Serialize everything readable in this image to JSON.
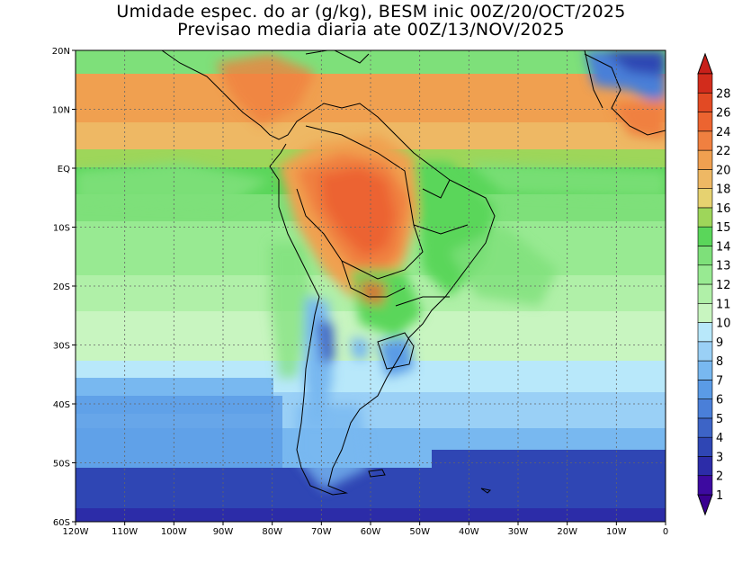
{
  "title": {
    "line1": "Umidade espec. do ar (g/kg), BESM inic 00Z/20/OCT/2025",
    "line2": "Previsao media diaria ate 00Z/13/NOV/2025"
  },
  "map": {
    "lon_range": [
      -120,
      0
    ],
    "lat_range": [
      -60,
      20
    ],
    "grid": true,
    "lon_labels": [
      "120W",
      "110W",
      "100W",
      "90W",
      "80W",
      "70W",
      "60W",
      "50W",
      "40W",
      "30W",
      "20W",
      "10W",
      "0"
    ],
    "lat_labels": [
      "20N",
      "10N",
      "EQ",
      "10S",
      "20S",
      "30S",
      "40S",
      "50S",
      "60S"
    ]
  },
  "colorbar": {
    "levels": [
      "1",
      "2",
      "3",
      "4",
      "5",
      "6",
      "7",
      "8",
      "9",
      "10",
      "11",
      "12",
      "13",
      "14",
      "15",
      "16",
      "18",
      "20",
      "22",
      "24",
      "26",
      "28"
    ],
    "colors": [
      "#3d0aa0",
      "#2c2ca8",
      "#2f46b4",
      "#3d64c6",
      "#4a7fd8",
      "#5a9be6",
      "#78b8f0",
      "#9ad0f6",
      "#b8e8fa",
      "#c8f5c0",
      "#b0f0a8",
      "#98ea92",
      "#7ee07a",
      "#5ad65a",
      "#9ed65a",
      "#e6d270",
      "#eeb864",
      "#f0a050",
      "#f08040",
      "#ec6430",
      "#e24a24",
      "#d22c1c"
    ],
    "low_end_color": "#3a0090",
    "high_end_color": "#c8201a"
  }
}
